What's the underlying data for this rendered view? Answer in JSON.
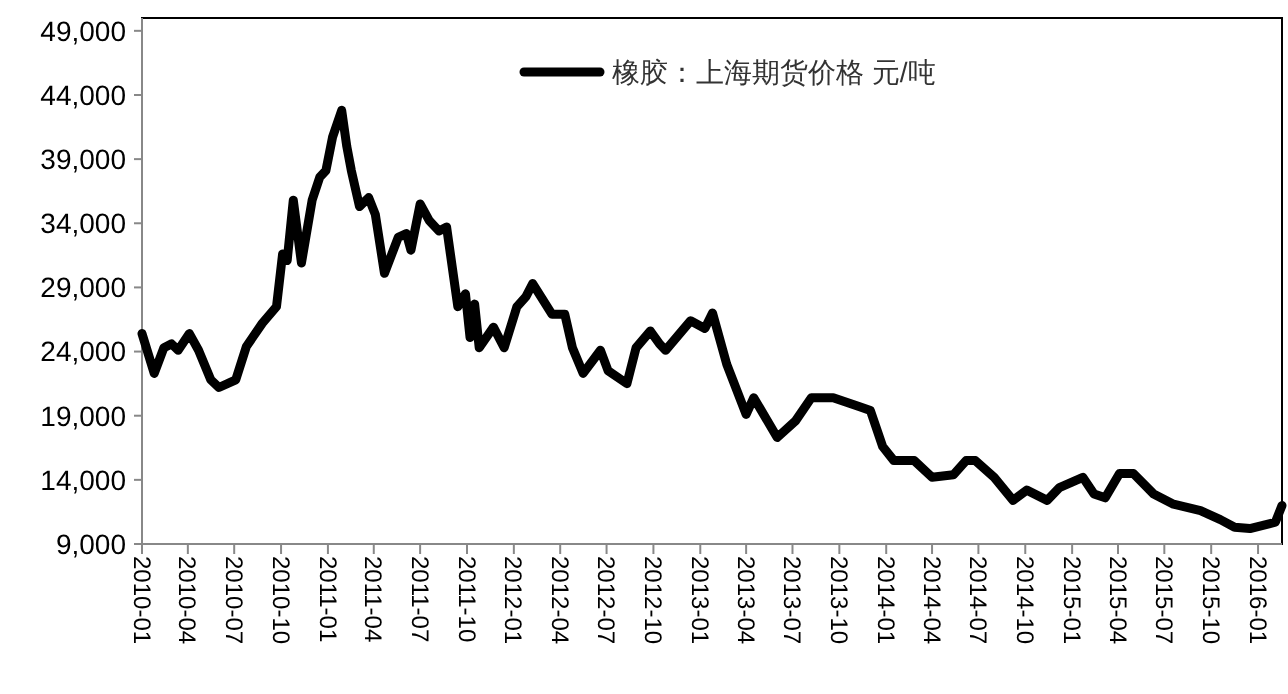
{
  "chart_data": {
    "type": "line",
    "legend": "top",
    "line_style": "solid",
    "marker": "none",
    "grid": false,
    "xlim": [
      "2010-01-01",
      "2016-02-17"
    ],
    "xticks": [
      "2010-01",
      "2010-04",
      "2010-07",
      "2010-10",
      "2011-01",
      "2011-04",
      "2011-07",
      "2011-10",
      "2012-01",
      "2012-04",
      "2012-07",
      "2012-10",
      "2013-01",
      "2013-04",
      "2013-07",
      "2013-10",
      "2014-01",
      "2014-04",
      "2014-07",
      "2014-10",
      "2015-01",
      "2015-04",
      "2015-07",
      "2015-10",
      "2016-01"
    ],
    "ylim": [
      9000,
      50000
    ],
    "yticks": [
      {
        "value": 9000,
        "label": "9,000"
      },
      {
        "value": 14000,
        "label": "14,000"
      },
      {
        "value": 19000,
        "label": "19,000"
      },
      {
        "value": 24000,
        "label": "24,000"
      },
      {
        "value": 29000,
        "label": "29,000"
      },
      {
        "value": 34000,
        "label": "34,000"
      },
      {
        "value": 39000,
        "label": "39,000"
      },
      {
        "value": 44000,
        "label": "44,000"
      },
      {
        "value": 49000,
        "label": "49,000"
      }
    ],
    "x": [
      "2010-01-01",
      "2010-01-25",
      "2010-02-13",
      "2010-02-28",
      "2010-03-13",
      "2010-04-04",
      "2010-04-22",
      "2010-05-16",
      "2010-06-01",
      "2010-07-04",
      "2010-07-25",
      "2010-08-25",
      "2010-09-22",
      "2010-10-04",
      "2010-10-13",
      "2010-10-25",
      "2010-11-10",
      "2010-12-01",
      "2010-12-16",
      "2010-12-28",
      "2011-01-10",
      "2011-01-28",
      "2011-02-07",
      "2011-02-16",
      "2011-03-04",
      "2011-03-22",
      "2011-04-04",
      "2011-04-22",
      "2011-05-19",
      "2011-06-04",
      "2011-06-13",
      "2011-07-01",
      "2011-07-19",
      "2011-08-07",
      "2011-08-22",
      "2011-09-13",
      "2011-09-28",
      "2011-10-07",
      "2011-10-16",
      "2011-10-25",
      "2011-11-22",
      "2011-12-13",
      "2012-01-07",
      "2012-01-25",
      "2012-02-07",
      "2012-03-16",
      "2012-04-10",
      "2012-04-25",
      "2012-05-16",
      "2012-06-19",
      "2012-07-04",
      "2012-08-10",
      "2012-08-28",
      "2012-09-25",
      "2012-10-13",
      "2012-10-25",
      "2012-12-13",
      "2013-01-10",
      "2013-01-25",
      "2013-02-22",
      "2013-04-01",
      "2013-04-16",
      "2013-06-01",
      "2013-07-07",
      "2013-08-07",
      "2013-09-19",
      "2013-11-10",
      "2013-12-01",
      "2013-12-25",
      "2014-01-16",
      "2014-02-25",
      "2014-04-01",
      "2014-05-13",
      "2014-06-07",
      "2014-06-25",
      "2014-08-01",
      "2014-09-07",
      "2014-10-04",
      "2014-11-13",
      "2014-12-07",
      "2015-01-22",
      "2015-02-13",
      "2015-03-07",
      "2015-04-04",
      "2015-05-01",
      "2015-06-10",
      "2015-07-19",
      "2015-09-10",
      "2015-10-19",
      "2015-11-16",
      "2015-12-16",
      "2016-02-04",
      "2016-02-17"
    ],
    "series": [
      {
        "name": "橡胶：上海期货价格 元/吨",
        "color": "#000000",
        "values": [
          25400,
          22300,
          24300,
          24600,
          24100,
          25400,
          24100,
          21800,
          21200,
          21800,
          24400,
          26200,
          27500,
          31600,
          31100,
          35800,
          30900,
          35800,
          37600,
          38100,
          40700,
          42800,
          40000,
          38100,
          35300,
          36000,
          34700,
          30100,
          32900,
          33200,
          31900,
          35500,
          34200,
          33400,
          33700,
          27500,
          28500,
          25100,
          27700,
          24300,
          25900,
          24300,
          27500,
          28300,
          29300,
          26900,
          26900,
          24300,
          22300,
          24100,
          22500,
          21500,
          24300,
          25600,
          24600,
          24100,
          26400,
          25800,
          27000,
          23000,
          19100,
          20400,
          17300,
          18600,
          20400,
          20400,
          19700,
          19400,
          16600,
          15500,
          15500,
          14200,
          14400,
          15500,
          15500,
          14200,
          12400,
          13200,
          12400,
          13400,
          14200,
          12900,
          12600,
          14500,
          14500,
          12900,
          12100,
          11600,
          10900,
          10300,
          10200,
          10700,
          12000
        ]
      }
    ]
  }
}
